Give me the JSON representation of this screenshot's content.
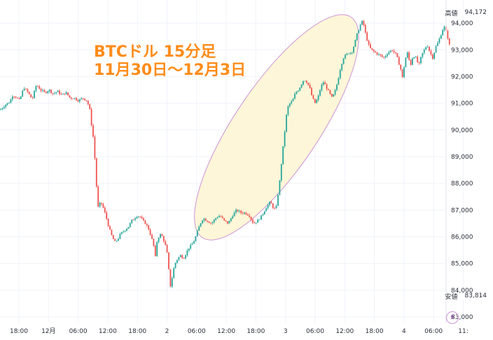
{
  "chart_data": {
    "type": "candlestick",
    "title": "BTCドル 15分足",
    "subtitle": "11月30日〜12月3日",
    "y_range": [
      83000,
      94500
    ],
    "y_ticks": [
      {
        "value": 94000,
        "label": "94,000"
      },
      {
        "value": 93000,
        "label": "93,000"
      },
      {
        "value": 92000,
        "label": "92,000"
      },
      {
        "value": 91000,
        "label": "91,000"
      },
      {
        "value": 90000,
        "label": "90,000"
      },
      {
        "value": 89000,
        "label": "89,000"
      },
      {
        "value": 88000,
        "label": "88,000"
      },
      {
        "value": 87000,
        "label": "87,000"
      },
      {
        "value": 86000,
        "label": "86,000"
      },
      {
        "value": 85000,
        "label": "85,000"
      },
      {
        "value": 84000,
        "label": "84,000"
      },
      {
        "value": 83000,
        "label": "83,000"
      }
    ],
    "x_ticks": [
      "18:00",
      "12月",
      "06:00",
      "12:00",
      "18:00",
      "2",
      "06:00",
      "12:00",
      "18:00",
      "3",
      "06:00",
      "12:00",
      "18:00",
      "4",
      "06:00",
      "11:"
    ],
    "high_label": "高値",
    "high_value": "94,172",
    "low_label": "安値",
    "low_value": "83,814",
    "path": [
      [
        0,
        90750
      ],
      [
        8,
        90950
      ],
      [
        14,
        91050
      ],
      [
        18,
        91300
      ],
      [
        22,
        91250
      ],
      [
        28,
        91100
      ],
      [
        34,
        91600
      ],
      [
        40,
        91400
      ],
      [
        46,
        91150
      ],
      [
        52,
        91700
      ],
      [
        58,
        91500
      ],
      [
        64,
        91400
      ],
      [
        70,
        91500
      ],
      [
        76,
        91350
      ],
      [
        82,
        91450
      ],
      [
        88,
        91300
      ],
      [
        94,
        91400
      ],
      [
        100,
        91200
      ],
      [
        106,
        91200
      ],
      [
        112,
        91100
      ],
      [
        118,
        91200
      ],
      [
        124,
        91100
      ],
      [
        128,
        90800
      ],
      [
        130,
        90300
      ],
      [
        132,
        90000
      ],
      [
        134,
        89500
      ],
      [
        136,
        88700
      ],
      [
        138,
        87800
      ],
      [
        140,
        87100
      ],
      [
        144,
        87300
      ],
      [
        148,
        87050
      ],
      [
        152,
        86700
      ],
      [
        156,
        86300
      ],
      [
        160,
        86000
      ],
      [
        164,
        85800
      ],
      [
        168,
        85900
      ],
      [
        172,
        86100
      ],
      [
        176,
        86200
      ],
      [
        180,
        86300
      ],
      [
        184,
        86400
      ],
      [
        188,
        86600
      ],
      [
        192,
        86700
      ],
      [
        196,
        86800
      ],
      [
        200,
        86750
      ],
      [
        204,
        86600
      ],
      [
        208,
        86500
      ],
      [
        212,
        86300
      ],
      [
        216,
        86000
      ],
      [
        220,
        85600
      ],
      [
        222,
        85200
      ],
      [
        224,
        85800
      ],
      [
        228,
        86100
      ],
      [
        232,
        86000
      ],
      [
        236,
        85700
      ],
      [
        240,
        85200
      ],
      [
        242,
        84300
      ],
      [
        244,
        84100
      ],
      [
        246,
        84500
      ],
      [
        248,
        84800
      ],
      [
        250,
        85000
      ],
      [
        254,
        85200
      ],
      [
        258,
        85300
      ],
      [
        262,
        85200
      ],
      [
        266,
        85400
      ],
      [
        270,
        85600
      ],
      [
        274,
        85700
      ],
      [
        278,
        85900
      ],
      [
        282,
        86200
      ],
      [
        286,
        86500
      ],
      [
        290,
        86700
      ],
      [
        296,
        86600
      ],
      [
        302,
        86500
      ],
      [
        308,
        86700
      ],
      [
        314,
        86800
      ],
      [
        320,
        86600
      ],
      [
        326,
        86500
      ],
      [
        332,
        86800
      ],
      [
        338,
        87000
      ],
      [
        344,
        86900
      ],
      [
        350,
        86900
      ],
      [
        356,
        86800
      ],
      [
        362,
        86500
      ],
      [
        368,
        86600
      ],
      [
        374,
        86800
      ],
      [
        380,
        87100
      ],
      [
        386,
        87300
      ],
      [
        390,
        87100
      ],
      [
        394,
        87000
      ],
      [
        396,
        87400
      ],
      [
        398,
        87800
      ],
      [
        400,
        88200
      ],
      [
        402,
        88800
      ],
      [
        404,
        89300
      ],
      [
        406,
        89800
      ],
      [
        408,
        90300
      ],
      [
        410,
        90800
      ],
      [
        414,
        91000
      ],
      [
        418,
        91100
      ],
      [
        422,
        91400
      ],
      [
        426,
        91500
      ],
      [
        430,
        91700
      ],
      [
        434,
        91900
      ],
      [
        438,
        91800
      ],
      [
        442,
        91600
      ],
      [
        446,
        91200
      ],
      [
        450,
        91000
      ],
      [
        454,
        91200
      ],
      [
        458,
        91600
      ],
      [
        462,
        91800
      ],
      [
        466,
        91600
      ],
      [
        470,
        91400
      ],
      [
        474,
        91200
      ],
      [
        478,
        91400
      ],
      [
        482,
        91800
      ],
      [
        486,
        92300
      ],
      [
        490,
        92700
      ],
      [
        494,
        92800
      ],
      [
        498,
        92900
      ],
      [
        502,
        92900
      ],
      [
        506,
        93200
      ],
      [
        510,
        93600
      ],
      [
        514,
        93900
      ],
      [
        518,
        94100
      ],
      [
        522,
        93600
      ],
      [
        526,
        93200
      ],
      [
        530,
        93000
      ],
      [
        536,
        92900
      ],
      [
        542,
        92800
      ],
      [
        548,
        92700
      ],
      [
        554,
        92900
      ],
      [
        560,
        93000
      ],
      [
        566,
        92800
      ],
      [
        572,
        92300
      ],
      [
        575,
        91900
      ],
      [
        578,
        92600
      ],
      [
        582,
        92900
      ],
      [
        586,
        92400
      ],
      [
        590,
        92800
      ],
      [
        594,
        92700
      ],
      [
        598,
        92400
      ],
      [
        602,
        92800
      ],
      [
        606,
        93000
      ],
      [
        610,
        93200
      ],
      [
        614,
        92900
      ],
      [
        618,
        92700
      ],
      [
        622,
        93100
      ],
      [
        626,
        93300
      ],
      [
        630,
        93600
      ],
      [
        634,
        93900
      ],
      [
        638,
        93600
      ],
      [
        641,
        93300
      ],
      [
        643,
        93000
      ]
    ]
  },
  "colors": {
    "up": "#26a69a",
    "down": "#ef5350",
    "grid": "#f0f3fa",
    "title": "#ff8c1a",
    "ellipse_fill": "#fdf6d8",
    "ellipse_stroke": "#ce93d8"
  }
}
